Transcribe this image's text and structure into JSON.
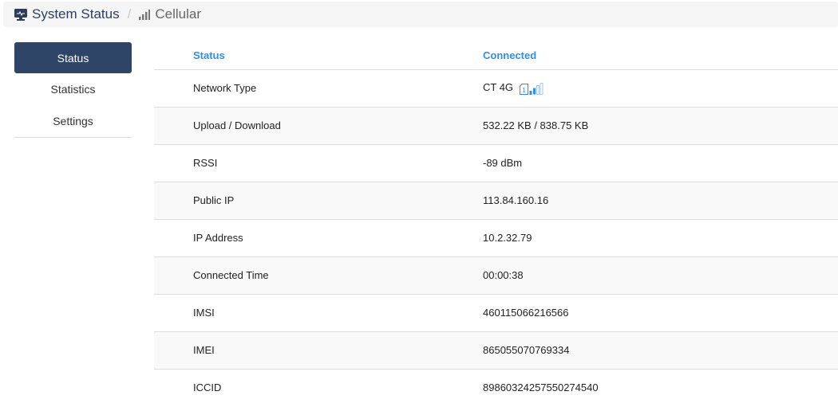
{
  "breadcrumb": {
    "home": "System Status",
    "current": "Cellular",
    "home_icon": "monitor-icon",
    "current_icon": "signal-icon"
  },
  "sidebar": {
    "items": [
      {
        "label": "Status",
        "active": true
      },
      {
        "label": "Statistics"
      },
      {
        "label": "Settings"
      }
    ]
  },
  "table": {
    "header": {
      "label": "Status",
      "value": "Connected"
    },
    "rows": [
      {
        "label": "Network Type",
        "value": "CT 4G",
        "sim": "1",
        "signal_bars": 2
      },
      {
        "label": "Upload / Download",
        "value": "532.22 KB / 838.75 KB"
      },
      {
        "label": "RSSI",
        "value": "-89 dBm"
      },
      {
        "label": "Public IP",
        "value": "113.84.160.16"
      },
      {
        "label": "IP Address",
        "value": "10.2.32.79"
      },
      {
        "label": "Connected Time",
        "value": "00:00:38"
      },
      {
        "label": "IMSI",
        "value": "460115066216566"
      },
      {
        "label": "IMEI",
        "value": "865055070769334"
      },
      {
        "label": "ICCID",
        "value": "89860324257550274540"
      }
    ]
  },
  "colors": {
    "accent": "#2f8fe8",
    "sidebar_active": "#2e4567"
  }
}
